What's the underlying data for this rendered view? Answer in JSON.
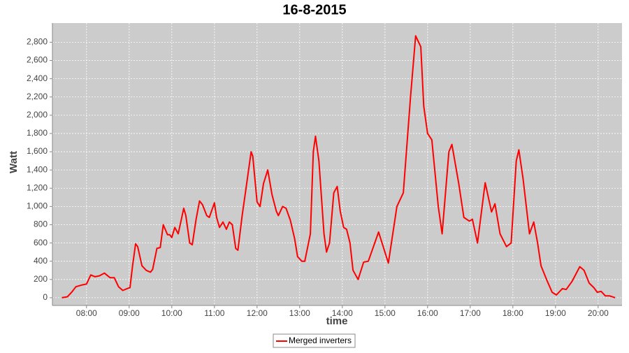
{
  "chart_data": {
    "type": "line",
    "title": "16-8-2015",
    "xlabel": "time",
    "ylabel": "Watt",
    "legend": "bottom",
    "grid": true,
    "xlim": [
      7.2,
      20.56
    ],
    "ylim": [
      -85,
      3010
    ],
    "xticks": [
      {
        "value": 8,
        "label": "08:00"
      },
      {
        "value": 9,
        "label": "09:00"
      },
      {
        "value": 10,
        "label": "10:00"
      },
      {
        "value": 11,
        "label": "11:00"
      },
      {
        "value": 12,
        "label": "12:00"
      },
      {
        "value": 13,
        "label": "13:00"
      },
      {
        "value": 14,
        "label": "14:00"
      },
      {
        "value": 15,
        "label": "15:00"
      },
      {
        "value": 16,
        "label": "16:00"
      },
      {
        "value": 17,
        "label": "17:00"
      },
      {
        "value": 18,
        "label": "18:00"
      },
      {
        "value": 19,
        "label": "19:00"
      },
      {
        "value": 20,
        "label": "20:00"
      }
    ],
    "yticks": [
      0,
      200,
      400,
      600,
      800,
      {
        "value": 1000,
        "label": "1,000"
      },
      {
        "value": 1200,
        "label": "1,200"
      },
      {
        "value": 1400,
        "label": "1,400"
      },
      {
        "value": 1600,
        "label": "1,600"
      },
      {
        "value": 1800,
        "label": "1,800"
      },
      {
        "value": 2000,
        "label": "2,000"
      },
      {
        "value": 2200,
        "label": "2,200"
      },
      {
        "value": 2400,
        "label": "2,400"
      },
      {
        "value": 2600,
        "label": "2,600"
      },
      {
        "value": 2800,
        "label": "2,800"
      }
    ],
    "x": [
      7.42,
      7.55,
      7.65,
      7.75,
      7.9,
      8.0,
      8.1,
      8.2,
      8.3,
      8.42,
      8.55,
      8.65,
      8.75,
      8.85,
      8.95,
      9.02,
      9.08,
      9.15,
      9.2,
      9.3,
      9.4,
      9.5,
      9.55,
      9.65,
      9.73,
      9.8,
      9.9,
      9.95,
      10.0,
      10.07,
      10.15,
      10.28,
      10.33,
      10.42,
      10.48,
      10.57,
      10.65,
      10.72,
      10.82,
      10.88,
      11.0,
      11.05,
      11.12,
      11.2,
      11.28,
      11.35,
      11.42,
      11.5,
      11.55,
      11.65,
      11.75,
      11.86,
      11.9,
      12.0,
      12.07,
      12.15,
      12.25,
      12.35,
      12.45,
      12.5,
      12.6,
      12.68,
      12.78,
      12.88,
      12.95,
      13.05,
      13.12,
      13.25,
      13.32,
      13.37,
      13.45,
      13.57,
      13.63,
      13.7,
      13.8,
      13.88,
      13.95,
      14.03,
      14.1,
      14.18,
      14.25,
      14.37,
      14.5,
      14.61,
      14.85,
      15.08,
      15.28,
      15.43,
      15.6,
      15.72,
      15.84,
      15.91,
      16.0,
      16.1,
      16.25,
      16.34,
      16.5,
      16.57,
      16.73,
      16.85,
      16.98,
      17.05,
      17.17,
      17.35,
      17.5,
      17.58,
      17.7,
      17.85,
      17.96,
      18.08,
      18.14,
      18.24,
      18.39,
      18.49,
      18.58,
      18.66,
      18.79,
      18.92,
      19.02,
      19.16,
      19.25,
      19.39,
      19.57,
      19.67,
      19.79,
      19.9,
      19.98,
      20.07,
      20.17,
      20.27,
      20.4
    ],
    "series": [
      {
        "name": "Merged inverters",
        "color": "#ff0000",
        "values": [
          0,
          10,
          60,
          120,
          140,
          150,
          250,
          230,
          240,
          270,
          220,
          220,
          120,
          80,
          100,
          110,
          350,
          590,
          560,
          350,
          300,
          280,
          310,
          540,
          550,
          800,
          690,
          690,
          660,
          770,
          700,
          980,
          900,
          600,
          580,
          860,
          1060,
          1020,
          900,
          880,
          1040,
          880,
          770,
          830,
          750,
          830,
          800,
          540,
          520,
          900,
          1230,
          1600,
          1550,
          1050,
          1000,
          1250,
          1400,
          1130,
          950,
          900,
          1000,
          980,
          850,
          650,
          450,
          400,
          400,
          700,
          1600,
          1770,
          1500,
          700,
          500,
          600,
          1150,
          1220,
          950,
          770,
          750,
          600,
          300,
          200,
          390,
          400,
          720,
          380,
          1000,
          1150,
          2200,
          2870,
          2750,
          2100,
          1800,
          1730,
          1000,
          700,
          1600,
          1680,
          1250,
          880,
          840,
          860,
          600,
          1260,
          940,
          1030,
          700,
          560,
          600,
          1500,
          1620,
          1300,
          700,
          830,
          600,
          350,
          200,
          60,
          30,
          100,
          90,
          180,
          340,
          300,
          160,
          110,
          60,
          70,
          20,
          20,
          0
        ]
      }
    ]
  }
}
